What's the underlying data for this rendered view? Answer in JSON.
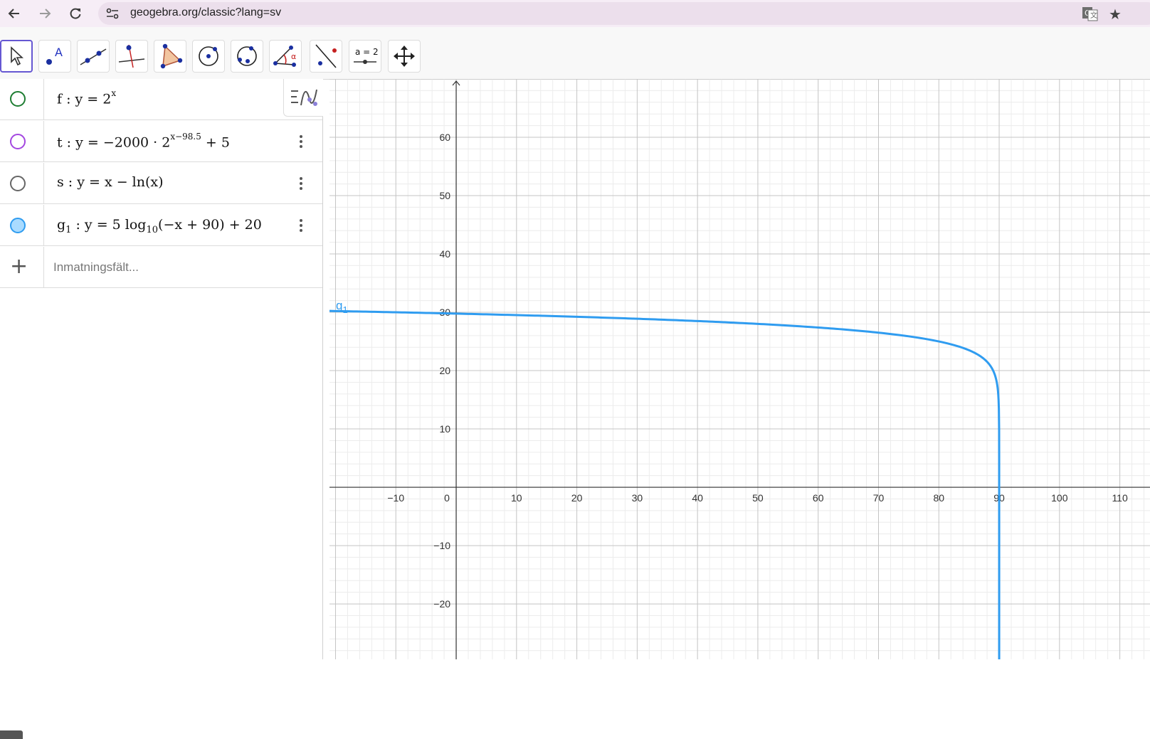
{
  "browser": {
    "url": "geogebra.org/classic?lang=sv",
    "back_icon": "arrow-left-icon",
    "forward_icon": "arrow-right-icon",
    "reload_icon": "reload-icon"
  },
  "toolbar": {
    "tools": [
      {
        "name": "move-tool",
        "icon": "pointer-icon",
        "active": true
      },
      {
        "name": "point-tool",
        "icon": "point-icon",
        "label": "A"
      },
      {
        "name": "line-tool",
        "icon": "line-icon"
      },
      {
        "name": "perpendicular-tool",
        "icon": "perpendicular-icon"
      },
      {
        "name": "polygon-tool",
        "icon": "polygon-icon"
      },
      {
        "name": "circle-center-tool",
        "icon": "circle-icon"
      },
      {
        "name": "circle-three-points-tool",
        "icon": "circle-points-icon"
      },
      {
        "name": "angle-tool",
        "icon": "angle-icon",
        "label": "α"
      },
      {
        "name": "reflect-tool",
        "icon": "reflect-icon"
      },
      {
        "name": "slider-tool",
        "icon": "slider-icon",
        "label": "a = 2"
      },
      {
        "name": "move-graphics-tool",
        "icon": "move-arrows-icon"
      }
    ]
  },
  "algebra": {
    "rows": [
      {
        "name": "f",
        "text": "f : y = 2",
        "sup": "x",
        "color": "#1e7d32",
        "filled": false
      },
      {
        "name": "t",
        "text": "t : y = −2000 · 2",
        "sup": "x−98.5",
        "after": " + 5",
        "color": "#a347e0",
        "filled": false
      },
      {
        "name": "s",
        "text": "s : y = x − ln(x)",
        "color": "#666666",
        "filled": false
      },
      {
        "name": "g1",
        "color": "#2f9cf0",
        "filled": true,
        "parts": {
          "g": "g",
          "sub1": "1",
          "mid": " : y = 5  log",
          "sub10": "10",
          "end": "(−x + 90) + 20"
        }
      }
    ],
    "input_placeholder": "Inmatningsfält..."
  },
  "graph": {
    "curve_label_main": "g",
    "curve_label_sub": "1",
    "curve_color": "#2f9cf0",
    "chart_data": {
      "type": "line",
      "function": "y = 5 log10(-x + 90) + 20",
      "xlim": [
        -21,
        115
      ],
      "ylim": [
        -29.5,
        70
      ],
      "x_ticks": [
        "−10",
        "0",
        "10",
        "20",
        "30",
        "40",
        "50",
        "60",
        "70",
        "80",
        "90",
        "100",
        "110"
      ],
      "x_tick_values": [
        -10,
        0,
        10,
        20,
        30,
        40,
        50,
        60,
        70,
        80,
        90,
        100,
        110
      ],
      "y_ticks": [
        "60",
        "50",
        "40",
        "30",
        "20",
        "10",
        "−10",
        "−20"
      ],
      "y_tick_values": [
        60,
        50,
        40,
        30,
        20,
        10,
        -10,
        -20
      ],
      "grid": true,
      "series": [
        {
          "name": "g1",
          "asymptote_x": 90
        }
      ]
    }
  }
}
